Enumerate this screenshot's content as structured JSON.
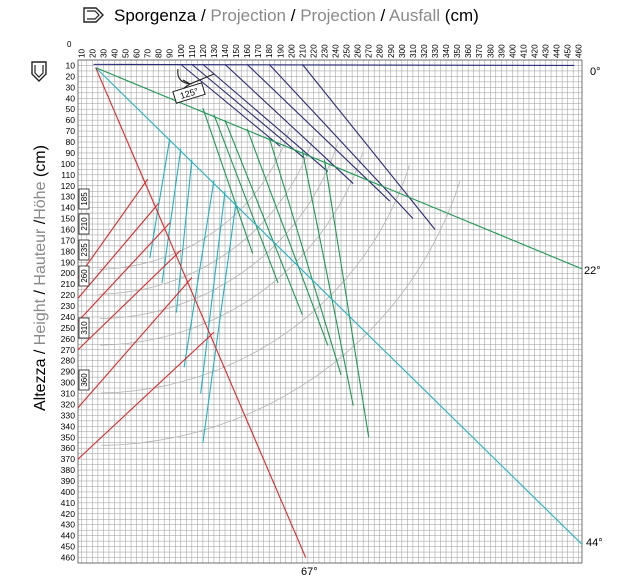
{
  "chart_data": {
    "type": "line",
    "xlabel_parts": {
      "p1": "Sporgenza",
      "s1": " / ",
      "p2": "Projection",
      "s2": " / ",
      "p3": "Projection",
      "s3": " / ",
      "p4": "Ausfall",
      "unit": " (cm)"
    },
    "ylabel_parts": {
      "p1": "Altezza",
      "s1": " / ",
      "p2": "Height",
      "s2": " / ",
      "p3": "Hauteur",
      "s3": " /",
      "p4": "Höhe",
      "unit": " (cm)"
    },
    "origin_label": "0",
    "x_ticks": [
      10,
      20,
      30,
      40,
      50,
      60,
      70,
      80,
      90,
      100,
      110,
      120,
      130,
      140,
      150,
      160,
      170,
      180,
      190,
      200,
      210,
      220,
      230,
      240,
      250,
      260,
      270,
      280,
      290,
      300,
      310,
      320,
      330,
      340,
      350,
      360,
      370,
      380,
      390,
      400,
      410,
      420,
      430,
      440,
      450,
      460
    ],
    "y_ticks": [
      10,
      20,
      30,
      40,
      50,
      60,
      70,
      80,
      90,
      100,
      110,
      120,
      130,
      140,
      150,
      160,
      170,
      180,
      190,
      200,
      210,
      220,
      230,
      240,
      250,
      260,
      270,
      280,
      290,
      300,
      310,
      320,
      330,
      340,
      350,
      360,
      370,
      380,
      390,
      400,
      410,
      420,
      430,
      440,
      450,
      460
    ],
    "xlim": [
      7,
      463
    ],
    "ylim": [
      5,
      465
    ],
    "angle_labels": [
      "0°",
      "22°",
      "44°",
      "67°"
    ],
    "boxed_labels": [
      "185",
      "210",
      "235",
      "260",
      "310",
      "360"
    ],
    "angle_marker": "125°",
    "colors": {
      "navy": "#2b2b7a",
      "green": "#1f9a55",
      "cyan": "#1fb3c4",
      "red": "#e02828",
      "grey": "#b8b8b8"
    },
    "series": [
      {
        "color": "navy",
        "angle": 0,
        "arms": [
          [
            [
              21,
              9
            ],
            [
              456,
              10
            ]
          ],
          [
            [
              100,
              9
            ],
            [
              190,
              84
            ]
          ],
          [
            [
              110,
              9
            ],
            [
              212,
              95
            ]
          ],
          [
            [
              120,
              9
            ],
            [
              233,
              107
            ]
          ],
          [
            [
              140,
              9
            ],
            [
              256,
              118
            ]
          ],
          [
            [
              160,
              9
            ],
            [
              289,
              134
            ]
          ],
          [
            [
              180,
              9
            ],
            [
              310,
              150
            ]
          ],
          [
            [
              210,
              9
            ],
            [
              330,
              160
            ]
          ]
        ]
      },
      {
        "color": "green",
        "angle": 22,
        "arms": [
          [
            [
              23,
              12
            ],
            [
              483,
              196
            ]
          ],
          [
            [
              120,
              49
            ],
            [
              165,
              182
            ]
          ],
          [
            [
              130,
              55
            ],
            [
              188,
              209
            ]
          ],
          [
            [
              140,
              60
            ],
            [
              210,
              238
            ]
          ],
          [
            [
              160,
              68
            ],
            [
              233,
              266
            ]
          ],
          [
            [
              180,
              76
            ],
            [
              245,
              293
            ]
          ],
          [
            [
              210,
              88
            ],
            [
              256,
              321
            ]
          ],
          [
            [
              230,
              96
            ],
            [
              270,
              350
            ]
          ]
        ]
      },
      {
        "color": "cyan",
        "angle": 44,
        "arms": [
          [
            [
              23,
              12
            ],
            [
              483,
              448
            ]
          ],
          [
            [
              90,
              77
            ],
            [
              72,
              186
            ]
          ],
          [
            [
              100,
              86
            ],
            [
              83,
              209
            ]
          ],
          [
            [
              110,
              96
            ],
            [
              96,
              236
            ]
          ],
          [
            [
              130,
              115
            ],
            [
              103,
              286
            ]
          ],
          [
            [
              140,
              125
            ],
            [
              118,
              310
            ]
          ],
          [
            [
              150,
              135
            ],
            [
              120,
              355
            ]
          ]
        ]
      },
      {
        "color": "red",
        "angle": 67,
        "arms": [
          [
            [
              23,
              12
            ],
            [
              213,
              460
            ]
          ],
          [
            [
              70,
              114
            ],
            [
              -3,
              204
            ]
          ],
          [
            [
              80,
              136
            ],
            [
              -3,
              223
            ]
          ],
          [
            [
              90,
              154
            ],
            [
              -3,
              244
            ]
          ],
          [
            [
              100,
              179
            ],
            [
              -3,
              270
            ]
          ],
          [
            [
              110,
              204
            ],
            [
              -3,
              323
            ]
          ],
          [
            [
              130,
              254
            ],
            [
              -3,
              370
            ]
          ]
        ]
      }
    ]
  }
}
